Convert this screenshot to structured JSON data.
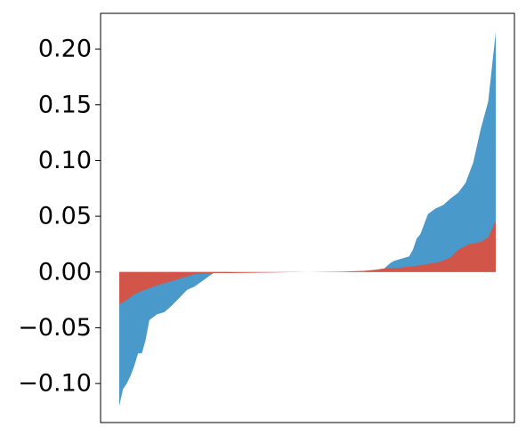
{
  "chart_data": {
    "type": "area",
    "title": "",
    "xlabel": "",
    "ylabel": "",
    "ylim": [
      -0.135,
      0.232
    ],
    "yticks": [
      -0.1,
      -0.05,
      0.0,
      0.05,
      0.1,
      0.15,
      0.2
    ],
    "ytick_labels": [
      "−0.10",
      "−0.05",
      "0.00",
      "0.05",
      "0.10",
      "0.15",
      "0.20"
    ],
    "xticks_visible": false,
    "grid": false,
    "legend": "none",
    "series": [
      {
        "color": "#4a99cb",
        "x": [
          0,
          1,
          2,
          3,
          4,
          5,
          6,
          7,
          8,
          10,
          12,
          14,
          16,
          18,
          20,
          25,
          30,
          40,
          50,
          60,
          70,
          71,
          72,
          73,
          74,
          75,
          76,
          77,
          78,
          79,
          80,
          82,
          84,
          86,
          88,
          90,
          92,
          94,
          96,
          98,
          100
        ],
        "values": [
          -0.12,
          -0.105,
          -0.1,
          -0.093,
          -0.084,
          -0.073,
          -0.073,
          -0.061,
          -0.043,
          -0.038,
          -0.036,
          -0.03,
          -0.023,
          -0.016,
          -0.013,
          -0.001,
          0.0,
          0.0,
          0.0,
          0.0,
          0.002,
          0.005,
          0.008,
          0.01,
          0.011,
          0.012,
          0.013,
          0.014,
          0.02,
          0.03,
          0.034,
          0.052,
          0.057,
          0.06,
          0.066,
          0.071,
          0.08,
          0.098,
          0.128,
          0.153,
          0.215
        ]
      },
      {
        "color": "#d15549",
        "x": [
          0,
          2,
          4,
          6,
          10,
          14,
          18,
          20,
          25,
          30,
          40,
          50,
          60,
          65,
          68,
          70,
          75,
          80,
          85,
          88,
          90,
          93,
          96,
          98,
          100
        ],
        "values": [
          -0.029,
          -0.025,
          -0.02,
          -0.017,
          -0.012,
          -0.008,
          -0.004,
          -0.002,
          -0.001,
          -0.001,
          -0.0005,
          0.0,
          0.0005,
          0.001,
          0.002,
          0.003,
          0.004,
          0.006,
          0.009,
          0.013,
          0.02,
          0.025,
          0.027,
          0.031,
          0.046
        ]
      }
    ]
  }
}
